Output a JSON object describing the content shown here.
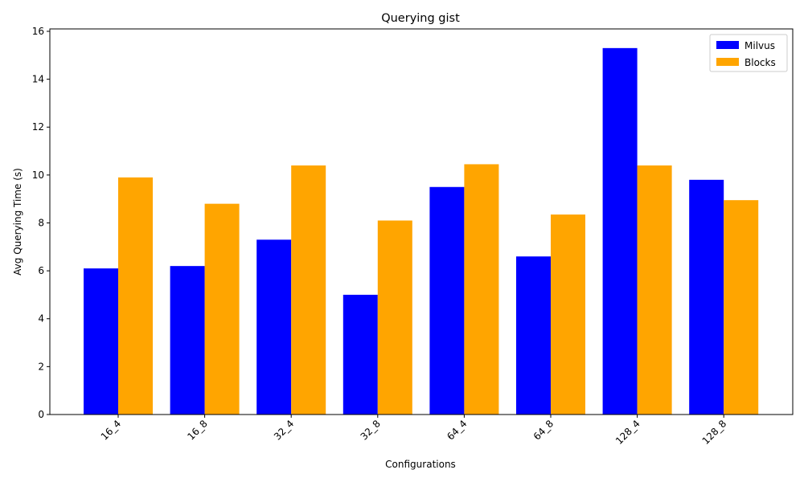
{
  "chart_data": {
    "type": "bar",
    "title": "Querying gist",
    "xlabel": "Configurations",
    "ylabel": "Avg Querying Time (s)",
    "categories": [
      "16_4",
      "16_8",
      "32_4",
      "32_8",
      "64_4",
      "64_8",
      "128_4",
      "128_8"
    ],
    "series": [
      {
        "name": "Milvus",
        "color": "#0000ff",
        "values": [
          6.1,
          6.2,
          7.3,
          5.0,
          9.5,
          6.6,
          15.3,
          9.8
        ]
      },
      {
        "name": "Blocks",
        "color": "#ffa500",
        "values": [
          9.9,
          8.8,
          10.4,
          8.1,
          10.45,
          8.35,
          10.4,
          8.95
        ]
      }
    ],
    "ylim": [
      0,
      16.1
    ],
    "yticks": [
      0,
      2,
      4,
      6,
      8,
      10,
      12,
      14,
      16
    ],
    "grid": false,
    "legend": "top-right"
  }
}
